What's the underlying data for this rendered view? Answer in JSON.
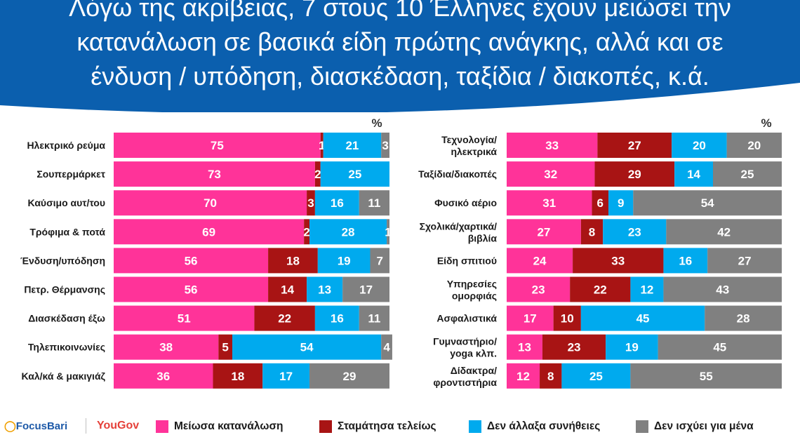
{
  "title_lines": [
    "Λόγω της ακρίβειας, 7 στους 10 Έλληνες έχουν μειώσει την",
    "κατανάλωση σε βασικά είδη πρώτης ανάγκης, αλλά και σε",
    "ένδυση / υπόδηση, διασκέδαση, ταξίδια / διακοπές, κ.ά."
  ],
  "colors": {
    "header_bg": "#0b5fae",
    "reduced": "#ff3399",
    "stopped": "#a81414",
    "unchanged": "#00aaee",
    "not_applicable": "#808080"
  },
  "chart_data": [
    {
      "type": "bar",
      "orientation": "horizontal",
      "stacked": true,
      "unit_label": "%",
      "categories": [
        [
          "Ηλεκτρικό ρεύμα"
        ],
        [
          "Σουπερμάρκετ"
        ],
        [
          "Καύσιμο αυτ/του"
        ],
        [
          "Τρόφιμα & ποτά"
        ],
        [
          "Ένδυση/υπόδηση"
        ],
        [
          "Πετρ. Θέρμανσης"
        ],
        [
          "Διασκέδαση έξω"
        ],
        [
          "Τηλεπικοινωνίες"
        ],
        [
          "Καλ/κά & μακιγιάζ"
        ]
      ],
      "series": [
        {
          "name": "Μείωσα κατανάλωση",
          "values": [
            75,
            73,
            70,
            69,
            56,
            56,
            51,
            38,
            36
          ]
        },
        {
          "name": "Σταμάτησα τελείως",
          "values": [
            1,
            2,
            3,
            2,
            18,
            14,
            22,
            5,
            18
          ]
        },
        {
          "name": "Δεν άλλαξα συνήθειες",
          "values": [
            21,
            25,
            16,
            28,
            19,
            13,
            16,
            54,
            17
          ]
        },
        {
          "name": "Δεν ισχύει για μένα",
          "values": [
            3,
            null,
            11,
            1,
            7,
            17,
            11,
            4,
            29
          ]
        }
      ],
      "xlim": [
        0,
        100
      ]
    },
    {
      "type": "bar",
      "orientation": "horizontal",
      "stacked": true,
      "unit_label": "%",
      "categories": [
        [
          "Τεχνολογία/",
          "ηλεκτρικά"
        ],
        [
          "Ταξίδια/διακοπές"
        ],
        [
          "Φυσικό αέριο"
        ],
        [
          "Σχολικά/χαρτικά/",
          "βιβλία"
        ],
        [
          "Είδη σπιτιού"
        ],
        [
          "Υπηρεσίες",
          "ομορφιάς"
        ],
        [
          "Ασφαλιστικά"
        ],
        [
          "Γυμναστήριο/",
          "yoga κλπ."
        ],
        [
          "Δίδακτρα/",
          "φροντιστήρια"
        ]
      ],
      "series": [
        {
          "name": "Μείωσα κατανάλωση",
          "values": [
            33,
            32,
            31,
            27,
            24,
            23,
            17,
            13,
            12
          ]
        },
        {
          "name": "Σταμάτησα τελείως",
          "values": [
            27,
            29,
            6,
            8,
            33,
            22,
            10,
            23,
            8
          ]
        },
        {
          "name": "Δεν άλλαξα συνήθειες",
          "values": [
            20,
            14,
            9,
            23,
            16,
            12,
            45,
            19,
            25
          ]
        },
        {
          "name": "Δεν ισχύει για μένα",
          "values": [
            20,
            25,
            54,
            42,
            27,
            43,
            28,
            45,
            55
          ]
        }
      ],
      "xlim": [
        0,
        100
      ]
    }
  ],
  "footer": {
    "logo_focus": "FocusBari",
    "logo_yougov": "YouGov",
    "legend": [
      {
        "label": "Μείωσα κατανάλωση",
        "color": "#ff3399"
      },
      {
        "label": "Σταμάτησα τελείως",
        "color": "#a81414"
      },
      {
        "label": "Δεν άλλαξα συνήθειες",
        "color": "#00aaee"
      },
      {
        "label": "Δεν ισχύει για μένα",
        "color": "#808080"
      }
    ]
  }
}
